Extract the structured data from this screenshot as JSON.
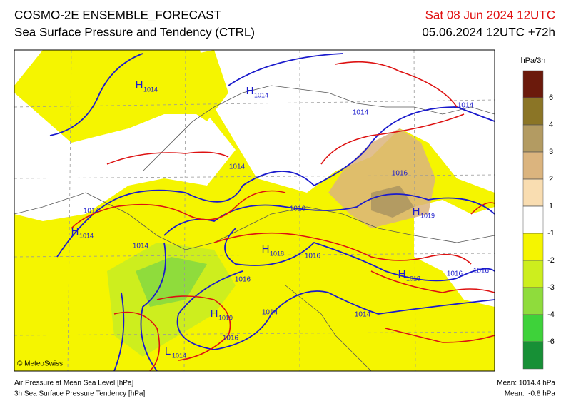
{
  "header": {
    "title": "COSMO-2E ENSEMBLE_FORECAST",
    "subtitle": "Sea Surface Pressure and Tendency (CTRL)",
    "valid_time": "Sat 08 Jun 2024 12UTC",
    "run_time": "05.06.2024 12UTC +72h"
  },
  "map": {
    "centers": [
      {
        "symbol": "H",
        "value": 1014
      },
      {
        "symbol": "H",
        "value": 1014
      },
      {
        "symbol": "H",
        "value": 1014
      },
      {
        "symbol": "H",
        "value": 1019
      },
      {
        "symbol": "H",
        "value": 1018
      },
      {
        "symbol": "H",
        "value": 1018
      },
      {
        "symbol": "H",
        "value": 1019
      },
      {
        "symbol": "L",
        "value": 1014
      }
    ],
    "isobar_labels": [
      1014,
      1014,
      1014,
      1016,
      1014,
      1016,
      1014,
      1016,
      1016,
      1016,
      1016,
      1014,
      1014,
      1016
    ],
    "copyright": "© MeteoSwiss"
  },
  "legend": {
    "unit": "hPa/3h",
    "ticks": [
      6,
      4,
      3,
      2,
      1,
      -1,
      -2,
      -3,
      -4,
      -6
    ],
    "colors": [
      "#6b1a0c",
      "#8b7526",
      "#b39b62",
      "#dbb47e",
      "#f9ddb1",
      "#ffffff",
      "#f5f500",
      "#cdee1e",
      "#8fdc3c",
      "#3ed23a",
      "#179036"
    ]
  },
  "footer": {
    "pressure_label": "Air Pressure at Mean Sea Level [hPa]",
    "tendency_label": "3h Sea Surface Pressure Tendency [hPa]",
    "pressure_mean": "Mean: 1014.4 hPa",
    "tendency_mean": "Mean:  -0.8 hPa"
  }
}
